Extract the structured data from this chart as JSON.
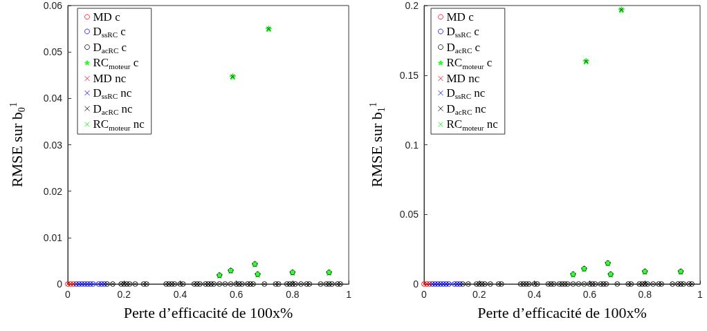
{
  "chart_data": [
    {
      "type": "scatter",
      "xlabel": "Perte d’efficacité de 100x%",
      "ylabel": "RMSE sur b$_{0}$$^{1}$",
      "xlim": [
        0,
        1
      ],
      "xticks": [
        0,
        0.2,
        0.4,
        0.6,
        0.8,
        1
      ],
      "ylim": [
        0,
        0.06
      ],
      "yticks": [
        0,
        0.01,
        0.02,
        0.03,
        0.04,
        0.05,
        0.06
      ],
      "legend": "top left",
      "grid": false,
      "series": [
        {
          "name": "MD c",
          "color": "#ff0000",
          "marker": "circle",
          "x": [
            0,
            0.01,
            0.02
          ],
          "values": [
            0,
            0,
            0
          ]
        },
        {
          "name": "D$_{ssRC}$ c",
          "color": "#0000ff",
          "marker": "circle",
          "x": [
            0.03,
            0.04,
            0.05,
            0.06,
            0.07,
            0.08,
            0.09,
            0.11,
            0.12,
            0.13
          ],
          "values": [
            0,
            0,
            0,
            0,
            0,
            0,
            0,
            0,
            0,
            0
          ]
        },
        {
          "name": "D$_{acRC}$ c",
          "color": "#000000",
          "marker": "circle",
          "x": [
            0.14,
            0.16,
            0.19,
            0.2,
            0.21,
            0.22,
            0.24,
            0.27,
            0.28,
            0.35,
            0.36,
            0.37,
            0.38,
            0.4,
            0.41,
            0.45,
            0.46,
            0.47,
            0.49,
            0.5,
            0.51,
            0.52,
            0.54,
            0.56,
            0.58,
            0.6,
            0.61,
            0.62,
            0.64,
            0.65,
            0.66,
            0.7,
            0.74,
            0.75,
            0.78,
            0.79,
            0.8,
            0.81,
            0.83,
            0.85,
            0.86,
            0.9,
            0.92,
            0.93,
            0.94,
            0.96,
            0.97,
            0.54,
            0.58,
            0.666,
            0.676,
            0.8,
            0.93
          ],
          "values": [
            0,
            0,
            0,
            0,
            0,
            0,
            0,
            0,
            0,
            0,
            0,
            0,
            0,
            0,
            0,
            0,
            0,
            0,
            0,
            0,
            0,
            0,
            0,
            0,
            0,
            0,
            0,
            0,
            0,
            0,
            0,
            0,
            0,
            0,
            0,
            0,
            0,
            0,
            0,
            0,
            0,
            0,
            0,
            0,
            0,
            0,
            0,
            0.0019,
            0.0029,
            0.0043,
            0.0021,
            0.0025,
            0.0025
          ]
        },
        {
          "name": "RC$_{moteur}$ c",
          "color": "#00ff00",
          "marker": "star",
          "x": [
            0.54,
            0.58,
            0.666,
            0.676,
            0.8,
            0.93,
            0.587,
            0.715
          ],
          "values": [
            0.0019,
            0.0029,
            0.0043,
            0.0021,
            0.0025,
            0.0025,
            0.0447,
            0.055
          ]
        },
        {
          "name": "MD nc",
          "color": "#ff0000",
          "marker": "cross",
          "x": [
            0,
            0.01,
            0.02
          ],
          "values": [
            0,
            0,
            0
          ]
        },
        {
          "name": "D$_{ssRC}$ nc",
          "color": "#0000ff",
          "marker": "cross",
          "x": [
            0.03,
            0.04,
            0.05,
            0.06,
            0.07,
            0.08,
            0.09,
            0.11,
            0.12,
            0.13
          ],
          "values": [
            0,
            0,
            0,
            0,
            0,
            0,
            0,
            0,
            0,
            0
          ]
        },
        {
          "name": "D$_{acRC}$ nc",
          "color": "#000000",
          "marker": "cross",
          "x": [
            0.14,
            0.16,
            0.19,
            0.2,
            0.21,
            0.22,
            0.24,
            0.27,
            0.28,
            0.35,
            0.36,
            0.37,
            0.38,
            0.4,
            0.41,
            0.45,
            0.46,
            0.47,
            0.49,
            0.5,
            0.51,
            0.52,
            0.54,
            0.56,
            0.58,
            0.6,
            0.61,
            0.62,
            0.64,
            0.65,
            0.66,
            0.7,
            0.74,
            0.75,
            0.78,
            0.79,
            0.8,
            0.81,
            0.83,
            0.85,
            0.86,
            0.9,
            0.92,
            0.93,
            0.94,
            0.96,
            0.97,
            0.587,
            0.715
          ],
          "values": [
            0,
            0,
            0,
            0,
            0,
            0,
            0,
            0,
            0,
            0,
            0,
            0,
            0,
            0,
            0,
            0,
            0,
            0,
            0,
            0,
            0,
            0,
            0,
            0,
            0,
            0,
            0,
            0,
            0,
            0,
            0,
            0,
            0,
            0,
            0,
            0,
            0,
            0,
            0,
            0,
            0,
            0,
            0,
            0,
            0,
            0,
            0,
            0.0447,
            0.055
          ]
        },
        {
          "name": "RC$_{moteur}$ nc",
          "color": "#00ff00",
          "marker": "cross"
        }
      ]
    },
    {
      "type": "scatter",
      "xlabel": "Perte d’efficacité de 100x%",
      "ylabel": "RMSE sur b$_{1}$$^{1}$",
      "xlim": [
        0,
        1
      ],
      "xticks": [
        0,
        0.2,
        0.4,
        0.6,
        0.8,
        1
      ],
      "ylim": [
        0,
        0.2
      ],
      "yticks": [
        0,
        0.05,
        0.1,
        0.15,
        0.2
      ],
      "legend": "top left",
      "grid": false,
      "series": [
        {
          "name": "MD c",
          "color": "#ff0000",
          "marker": "circle",
          "x": [
            0,
            0.01,
            0.02
          ],
          "values": [
            0,
            0,
            0
          ]
        },
        {
          "name": "D$_{ssRC}$ c",
          "color": "#0000ff",
          "marker": "circle",
          "x": [
            0.03,
            0.04,
            0.05,
            0.06,
            0.07,
            0.08,
            0.09,
            0.11,
            0.12,
            0.13
          ],
          "values": [
            0,
            0,
            0,
            0,
            0,
            0,
            0,
            0,
            0,
            0
          ]
        },
        {
          "name": "D$_{acRC}$ c",
          "color": "#000000",
          "marker": "circle",
          "x": [
            0.14,
            0.16,
            0.19,
            0.2,
            0.21,
            0.22,
            0.24,
            0.27,
            0.28,
            0.35,
            0.36,
            0.37,
            0.38,
            0.4,
            0.41,
            0.45,
            0.46,
            0.47,
            0.49,
            0.5,
            0.51,
            0.52,
            0.54,
            0.56,
            0.58,
            0.6,
            0.61,
            0.62,
            0.64,
            0.65,
            0.66,
            0.7,
            0.74,
            0.75,
            0.78,
            0.79,
            0.8,
            0.81,
            0.83,
            0.85,
            0.86,
            0.9,
            0.92,
            0.93,
            0.94,
            0.96,
            0.97,
            0.54,
            0.58,
            0.666,
            0.676,
            0.8,
            0.93
          ],
          "values": [
            0,
            0,
            0,
            0,
            0,
            0,
            0,
            0,
            0,
            0,
            0,
            0,
            0,
            0,
            0,
            0,
            0,
            0,
            0,
            0,
            0,
            0,
            0,
            0,
            0,
            0,
            0,
            0,
            0,
            0,
            0,
            0,
            0,
            0,
            0,
            0,
            0,
            0,
            0,
            0,
            0,
            0,
            0,
            0,
            0,
            0,
            0,
            0.007,
            0.011,
            0.015,
            0.007,
            0.009,
            0.009
          ]
        },
        {
          "name": "RC$_{moteur}$ c",
          "color": "#00ff00",
          "marker": "star",
          "x": [
            0.54,
            0.58,
            0.666,
            0.676,
            0.8,
            0.93,
            0.587,
            0.715
          ],
          "values": [
            0.007,
            0.011,
            0.015,
            0.007,
            0.009,
            0.009,
            0.16,
            0.197
          ]
        },
        {
          "name": "MD nc",
          "color": "#ff0000",
          "marker": "cross",
          "x": [
            0,
            0.01,
            0.02
          ],
          "values": [
            0,
            0,
            0
          ]
        },
        {
          "name": "D$_{ssRC}$ nc",
          "color": "#0000ff",
          "marker": "cross",
          "x": [
            0.03,
            0.04,
            0.05,
            0.06,
            0.07,
            0.08,
            0.09,
            0.11,
            0.12,
            0.13
          ],
          "values": [
            0,
            0,
            0,
            0,
            0,
            0,
            0,
            0,
            0,
            0
          ]
        },
        {
          "name": "D$_{acRC}$ nc",
          "color": "#000000",
          "marker": "cross",
          "x": [
            0.14,
            0.16,
            0.19,
            0.2,
            0.21,
            0.22,
            0.24,
            0.27,
            0.28,
            0.35,
            0.36,
            0.37,
            0.38,
            0.4,
            0.41,
            0.45,
            0.46,
            0.47,
            0.49,
            0.5,
            0.51,
            0.52,
            0.54,
            0.56,
            0.58,
            0.6,
            0.61,
            0.62,
            0.64,
            0.65,
            0.66,
            0.7,
            0.74,
            0.75,
            0.78,
            0.79,
            0.8,
            0.81,
            0.83,
            0.85,
            0.86,
            0.9,
            0.92,
            0.93,
            0.94,
            0.96,
            0.97,
            0.587,
            0.715
          ],
          "values": [
            0,
            0,
            0,
            0,
            0,
            0,
            0,
            0,
            0,
            0,
            0,
            0,
            0,
            0,
            0,
            0,
            0,
            0,
            0,
            0,
            0,
            0,
            0,
            0,
            0,
            0,
            0,
            0,
            0,
            0,
            0,
            0,
            0,
            0,
            0,
            0,
            0,
            0,
            0,
            0,
            0,
            0,
            0,
            0,
            0,
            0,
            0,
            0.16,
            0.197
          ]
        },
        {
          "name": "RC$_{moteur}$ nc",
          "color": "#00ff00",
          "marker": "cross"
        }
      ]
    }
  ]
}
